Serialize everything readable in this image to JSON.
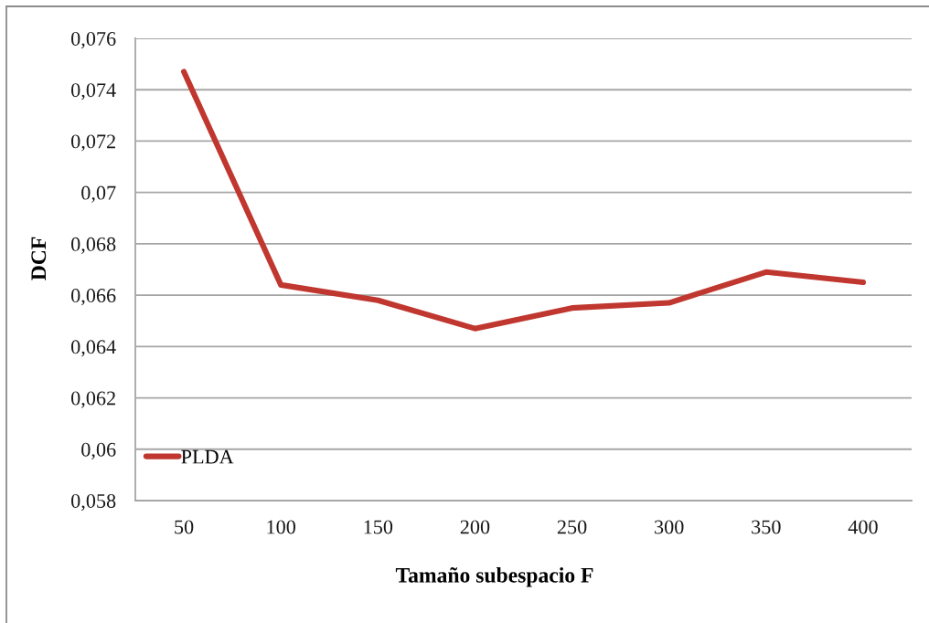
{
  "chart_data": {
    "type": "line",
    "xlabel": "Tamaño subespacio F",
    "ylabel": "DCF",
    "categories": [
      "50",
      "100",
      "150",
      "200",
      "250",
      "300",
      "350",
      "400"
    ],
    "series": [
      {
        "name": "PLDA",
        "color": "#c0372f",
        "values": [
          0.0747,
          0.0664,
          0.0658,
          0.0647,
          0.0655,
          0.0657,
          0.0669,
          0.0665
        ]
      }
    ],
    "ylim": [
      0.058,
      0.076
    ],
    "yticks": [
      {
        "value": 0.058,
        "label": "0,058"
      },
      {
        "value": 0.06,
        "label": "0,06"
      },
      {
        "value": 0.062,
        "label": "0,062"
      },
      {
        "value": 0.064,
        "label": "0,064"
      },
      {
        "value": 0.066,
        "label": "0,066"
      },
      {
        "value": 0.068,
        "label": "0,068"
      },
      {
        "value": 0.07,
        "label": "0,07"
      },
      {
        "value": 0.072,
        "label": "0,072"
      },
      {
        "value": 0.074,
        "label": "0,074"
      },
      {
        "value": 0.076,
        "label": "0,076"
      }
    ],
    "grid": "y",
    "legend": "bottom left",
    "line_style": "solid"
  }
}
